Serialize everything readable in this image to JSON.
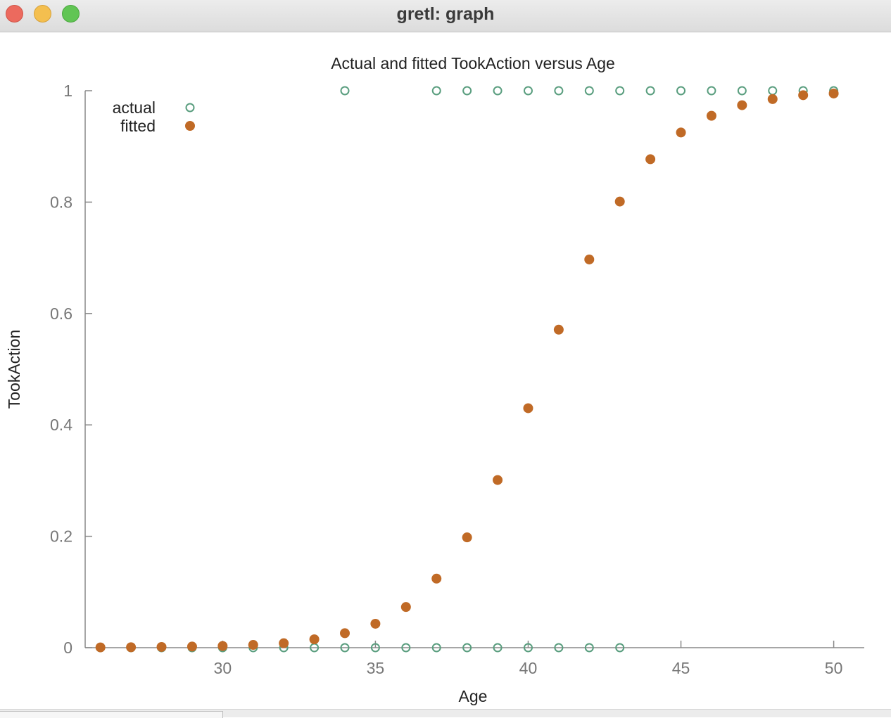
{
  "window": {
    "title": "gretl: graph"
  },
  "chart_data": {
    "type": "scatter",
    "title": "Actual and fitted TookAction versus Age",
    "xlabel": "Age",
    "ylabel": "TookAction",
    "xlim": [
      25.5,
      51
    ],
    "ylim": [
      0,
      1
    ],
    "xticks": [
      30,
      35,
      40,
      45,
      50
    ],
    "yticks": [
      0,
      0.2,
      0.4,
      0.6,
      0.8,
      1
    ],
    "ytick_labels": [
      "0",
      "0.2",
      "0.4",
      "0.6",
      "0.8",
      "1"
    ],
    "legend_position": "top-left",
    "grid": false,
    "colors": {
      "actual": "#5a9e7f",
      "fitted": "#c06a26",
      "axis": "#888888",
      "text": "#222222"
    },
    "series": [
      {
        "name": "actual",
        "marker": "open-circle",
        "points": [
          [
            26,
            0
          ],
          [
            27,
            0
          ],
          [
            28,
            0
          ],
          [
            29,
            0
          ],
          [
            30,
            0
          ],
          [
            31,
            0
          ],
          [
            32,
            0
          ],
          [
            33,
            0
          ],
          [
            34,
            0
          ],
          [
            35,
            0
          ],
          [
            36,
            0
          ],
          [
            37,
            0
          ],
          [
            38,
            0
          ],
          [
            39,
            0
          ],
          [
            40,
            0
          ],
          [
            41,
            0
          ],
          [
            42,
            0
          ],
          [
            43,
            0
          ],
          [
            34,
            1
          ],
          [
            37,
            1
          ],
          [
            38,
            1
          ],
          [
            39,
            1
          ],
          [
            40,
            1
          ],
          [
            41,
            1
          ],
          [
            42,
            1
          ],
          [
            43,
            1
          ],
          [
            44,
            1
          ],
          [
            45,
            1
          ],
          [
            46,
            1
          ],
          [
            47,
            1
          ],
          [
            48,
            1
          ],
          [
            49,
            1
          ],
          [
            50,
            1
          ]
        ]
      },
      {
        "name": "fitted",
        "marker": "filled-circle",
        "points": [
          [
            26,
            0.0005
          ],
          [
            27,
            0.0008
          ],
          [
            28,
            0.0013
          ],
          [
            29,
            0.002
          ],
          [
            30,
            0.003
          ],
          [
            31,
            0.005
          ],
          [
            32,
            0.008
          ],
          [
            33,
            0.015
          ],
          [
            34,
            0.026
          ],
          [
            35,
            0.043
          ],
          [
            36,
            0.073
          ],
          [
            37,
            0.124
          ],
          [
            38,
            0.198
          ],
          [
            39,
            0.301
          ],
          [
            40,
            0.43
          ],
          [
            41,
            0.571
          ],
          [
            42,
            0.697
          ],
          [
            43,
            0.801
          ],
          [
            44,
            0.877
          ],
          [
            45,
            0.925
          ],
          [
            46,
            0.955
          ],
          [
            47,
            0.974
          ],
          [
            48,
            0.985
          ],
          [
            49,
            0.992
          ],
          [
            50,
            0.995
          ]
        ]
      }
    ]
  }
}
